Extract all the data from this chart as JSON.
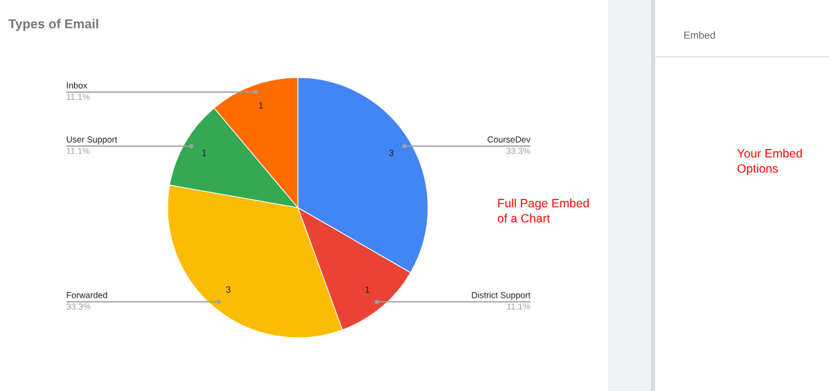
{
  "chart_data": {
    "type": "pie",
    "title": "Types of Email",
    "categories": [
      "CourseDev",
      "District Support",
      "Forwarded",
      "User Support",
      "Inbox"
    ],
    "values": [
      3,
      1,
      3,
      1,
      1
    ],
    "colors": [
      "#4285f4",
      "#ea4335",
      "#fbbc04",
      "#34a853",
      "#ff6d01"
    ],
    "data_labels": true,
    "annotations": [
      {
        "text": "33.3%",
        "x": "CourseDev"
      },
      {
        "text": "11.1%",
        "x": "District Support"
      },
      {
        "text": "33.3%",
        "x": "Forwarded"
      },
      {
        "text": "11.1%",
        "x": "User Support"
      },
      {
        "text": "11.1%",
        "x": "Inbox"
      },
      "Embed",
      "Full Page Embed\nof a Chart",
      "Your Embed\nOptions"
    ]
  }
}
